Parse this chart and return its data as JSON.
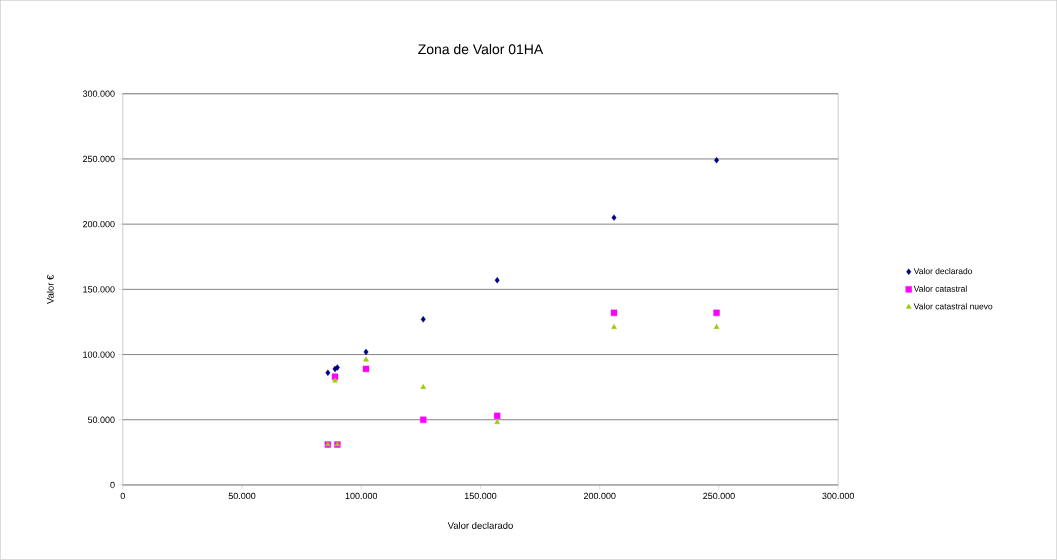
{
  "chart_data": {
    "type": "scatter",
    "title": "Zona de Valor 01HA",
    "xlabel": "Valor declarado",
    "ylabel": "Valor €",
    "x": [
      86000,
      89000,
      90000,
      102000,
      126000,
      157000,
      206000,
      249000
    ],
    "series": [
      {
        "name": "Valor declarado",
        "color": "#000080",
        "marker": "diamond",
        "values": [
          86000,
          89000,
          90000,
          102000,
          127000,
          157000,
          205000,
          249000
        ]
      },
      {
        "name": "Valor catastral",
        "color": "#ff00ff",
        "marker": "square",
        "values": [
          31000,
          83000,
          31000,
          89000,
          50000,
          53000,
          132000,
          132000
        ]
      },
      {
        "name": "Valor catastral nuevo",
        "color": "#99cc00",
        "marker": "triangle",
        "values": [
          31000,
          80000,
          31000,
          96000,
          75000,
          48000,
          121000,
          121000
        ]
      }
    ],
    "xlim": [
      0,
      300000
    ],
    "ylim": [
      0,
      300000
    ],
    "xticks": [
      0,
      {
        "value": 50000,
        "label": "50.000"
      },
      {
        "value": 100000,
        "label": "100.000"
      },
      {
        "value": 150000,
        "label": "150.000"
      },
      {
        "value": 200000,
        "label": "200.000"
      },
      {
        "value": 250000,
        "label": "250.000"
      },
      {
        "value": 300000,
        "label": "300.000"
      }
    ],
    "yticks": [
      0,
      {
        "value": 50000,
        "label": "50.000"
      },
      {
        "value": 100000,
        "label": "100.000"
      },
      {
        "value": 150000,
        "label": "150.000"
      },
      {
        "value": 200000,
        "label": "200.000"
      },
      {
        "value": 250000,
        "label": "250.000"
      },
      {
        "value": 300000,
        "label": "300.000"
      }
    ],
    "grid": "y",
    "legend": "right"
  }
}
